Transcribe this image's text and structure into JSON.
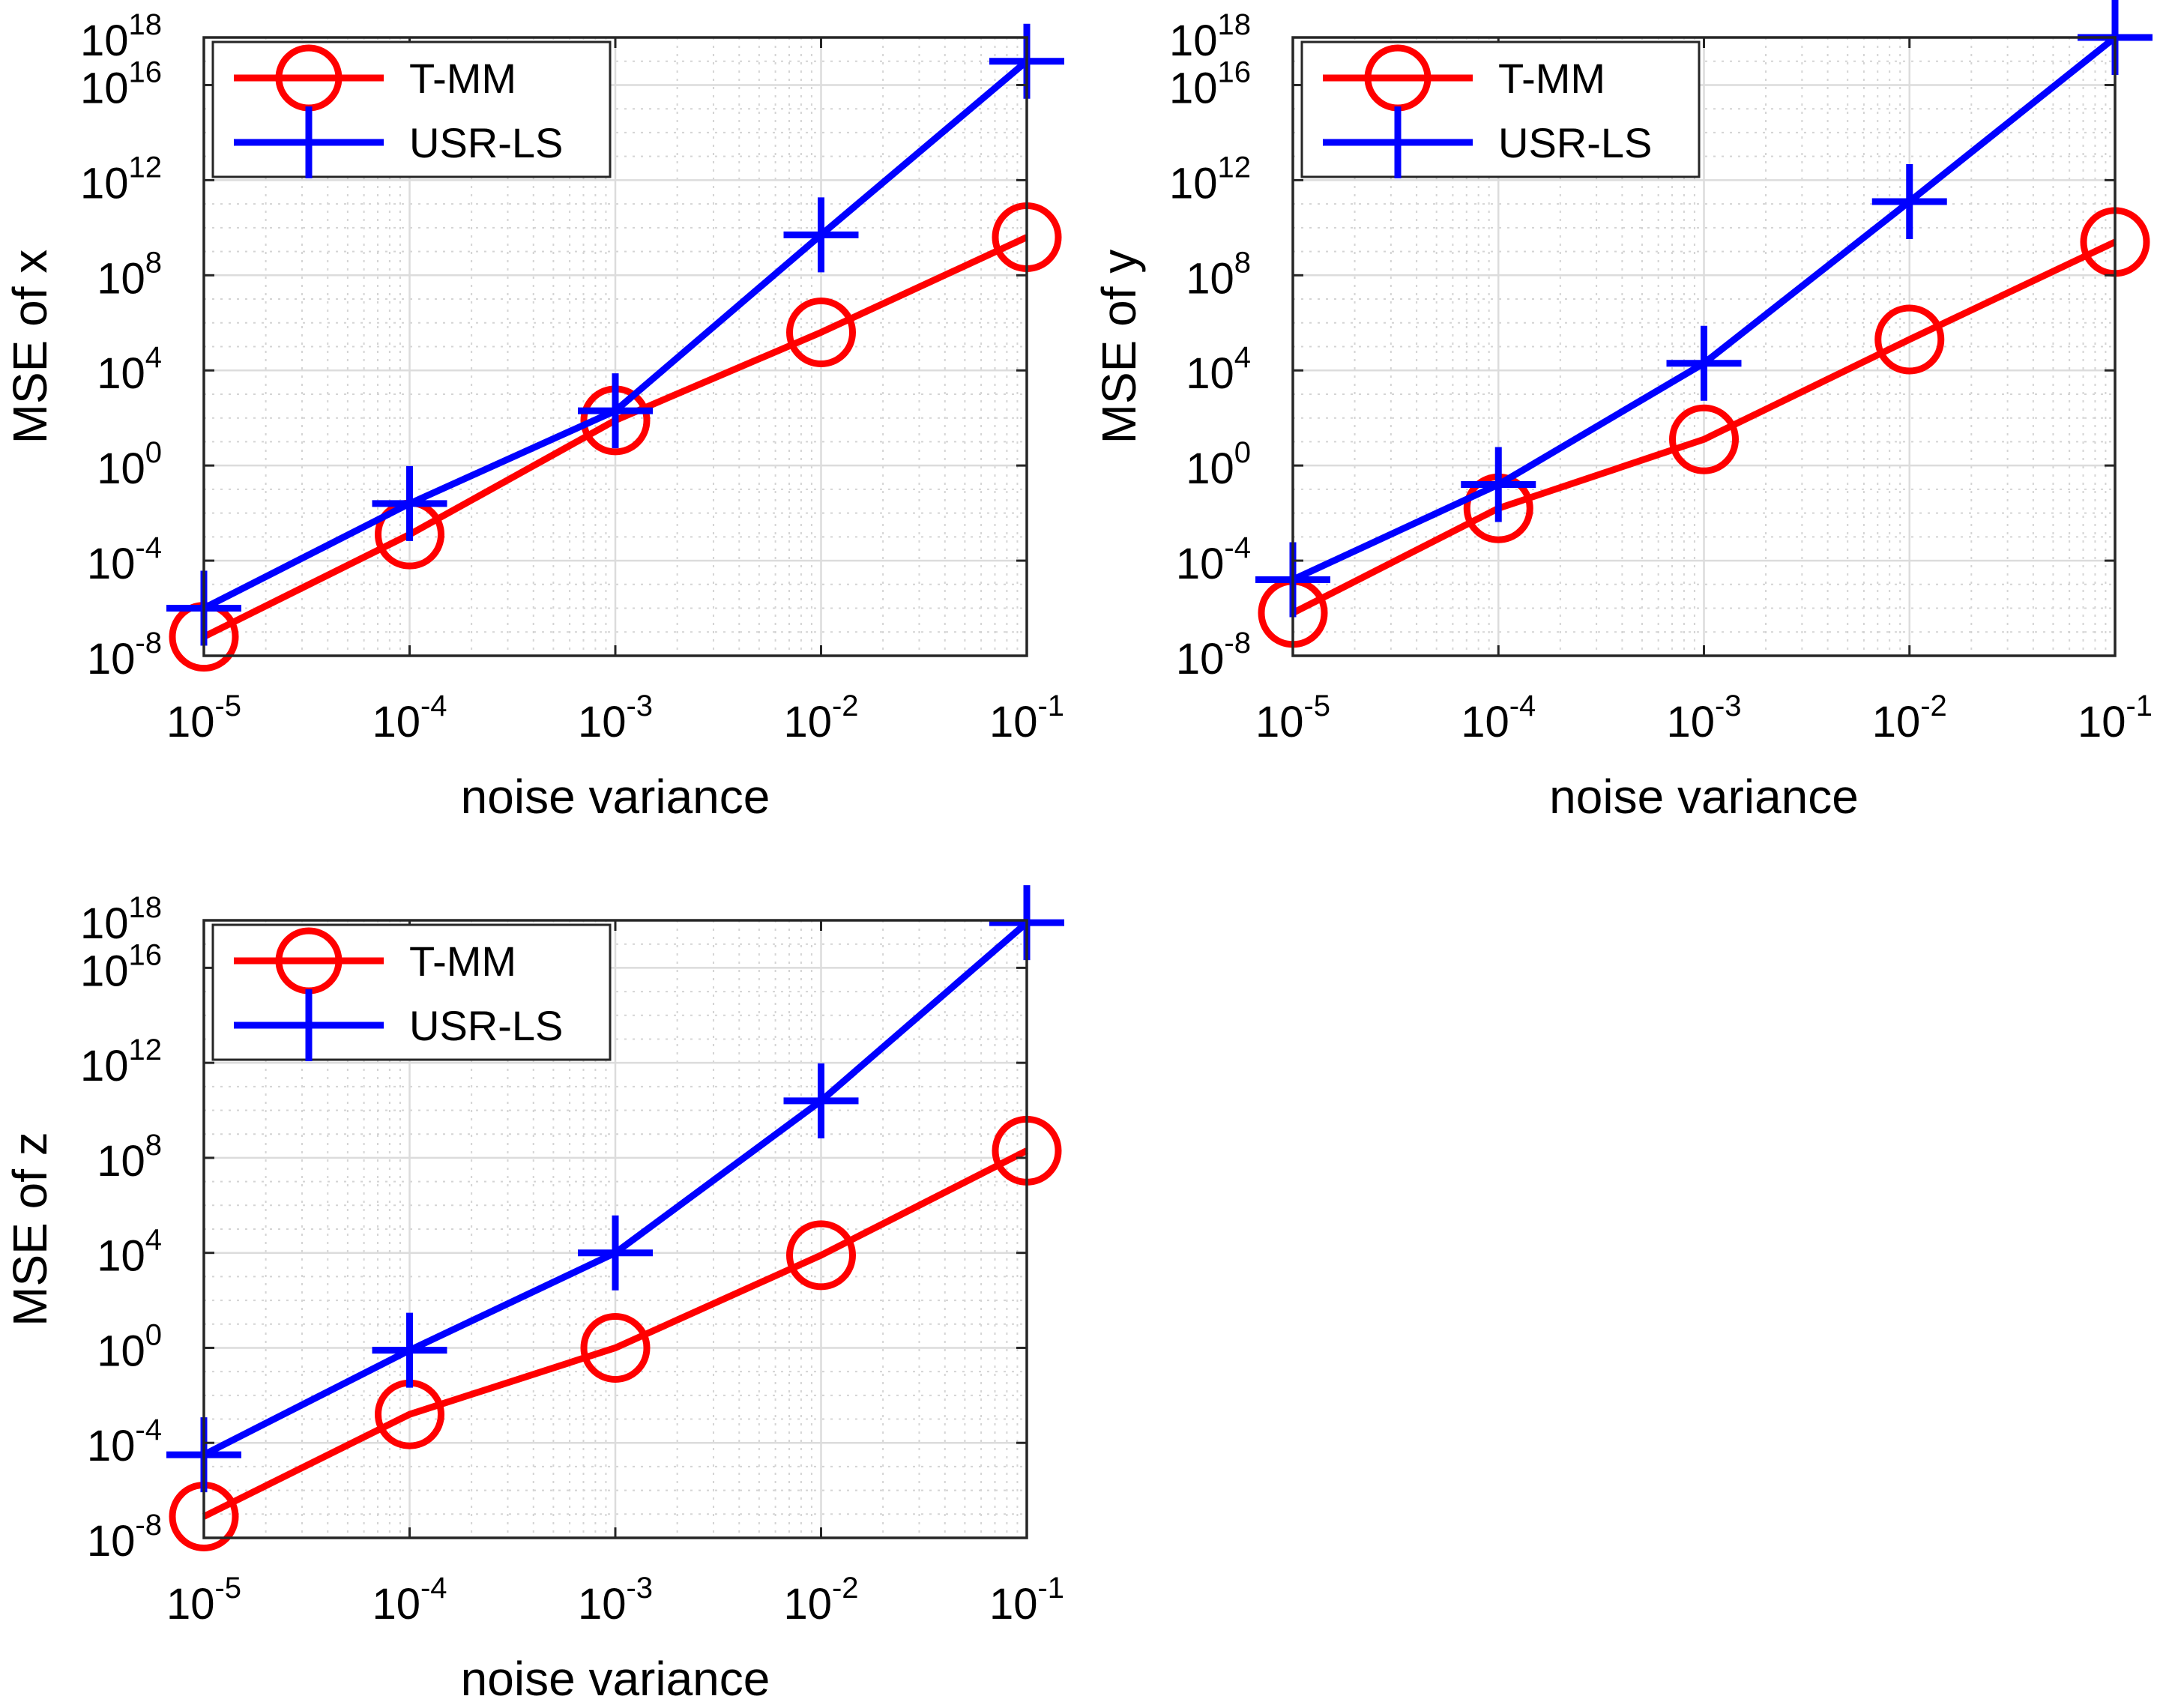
{
  "chart_data": [
    {
      "type": "line",
      "id": "mse-x",
      "title": "",
      "xlabel": "noise variance",
      "ylabel": "MSE of x",
      "xscale": "log",
      "yscale": "log",
      "xlim_exp": [
        -5,
        -1
      ],
      "ylim_exp": [
        -8,
        18
      ],
      "grid": true,
      "legend_position": "top-left",
      "x_tick_labels": [
        {
          "base": "10",
          "exp": "-5"
        },
        {
          "base": "10",
          "exp": "-4"
        },
        {
          "base": "10",
          "exp": "-3"
        },
        {
          "base": "10",
          "exp": "-2"
        },
        {
          "base": "10",
          "exp": "-1"
        }
      ],
      "y_tick_labels": [
        {
          "base": "10",
          "exp": "-8"
        },
        {
          "base": "10",
          "exp": "-4"
        },
        {
          "base": "10",
          "exp": "0"
        },
        {
          "base": "10",
          "exp": "4"
        },
        {
          "base": "10",
          "exp": "8"
        },
        {
          "base": "10",
          "exp": "12"
        },
        {
          "base": "10",
          "exp": "16"
        },
        {
          "base": "10",
          "exp": "18"
        }
      ],
      "x": [
        1e-05,
        0.0001,
        0.001,
        0.01,
        0.1
      ],
      "series": [
        {
          "name": "T-MM",
          "color": "#ff0000",
          "marker": "circle",
          "log10_values": [
            -7.2,
            -2.9,
            1.9,
            5.6,
            9.6
          ]
        },
        {
          "name": "USR-LS",
          "color": "#0000ff",
          "marker": "plus",
          "log10_values": [
            -6.0,
            -1.6,
            2.3,
            9.7,
            17.0
          ]
        }
      ]
    },
    {
      "type": "line",
      "id": "mse-y",
      "title": "",
      "xlabel": "noise variance",
      "ylabel": "MSE of y",
      "xscale": "log",
      "yscale": "log",
      "xlim_exp": [
        -5,
        -1
      ],
      "ylim_exp": [
        -8,
        18
      ],
      "grid": true,
      "legend_position": "top-left",
      "x_tick_labels": [
        {
          "base": "10",
          "exp": "-5"
        },
        {
          "base": "10",
          "exp": "-4"
        },
        {
          "base": "10",
          "exp": "-3"
        },
        {
          "base": "10",
          "exp": "-2"
        },
        {
          "base": "10",
          "exp": "-1"
        }
      ],
      "y_tick_labels": [
        {
          "base": "10",
          "exp": "-8"
        },
        {
          "base": "10",
          "exp": "-4"
        },
        {
          "base": "10",
          "exp": "0"
        },
        {
          "base": "10",
          "exp": "4"
        },
        {
          "base": "10",
          "exp": "8"
        },
        {
          "base": "10",
          "exp": "12"
        },
        {
          "base": "10",
          "exp": "16"
        },
        {
          "base": "10",
          "exp": "18"
        }
      ],
      "x": [
        1e-05,
        0.0001,
        0.001,
        0.01,
        0.1
      ],
      "series": [
        {
          "name": "T-MM",
          "color": "#ff0000",
          "marker": "circle",
          "log10_values": [
            -6.2,
            -1.8,
            1.1,
            5.3,
            9.4
          ]
        },
        {
          "name": "USR-LS",
          "color": "#0000ff",
          "marker": "plus",
          "log10_values": [
            -4.8,
            -0.8,
            4.3,
            11.1,
            18.0
          ]
        }
      ]
    },
    {
      "type": "line",
      "id": "mse-z",
      "title": "",
      "xlabel": "noise variance",
      "ylabel": "MSE of z",
      "xscale": "log",
      "yscale": "log",
      "xlim_exp": [
        -5,
        -1
      ],
      "ylim_exp": [
        -8,
        18
      ],
      "grid": true,
      "legend_position": "top-left",
      "x_tick_labels": [
        {
          "base": "10",
          "exp": "-5"
        },
        {
          "base": "10",
          "exp": "-4"
        },
        {
          "base": "10",
          "exp": "-3"
        },
        {
          "base": "10",
          "exp": "-2"
        },
        {
          "base": "10",
          "exp": "-1"
        }
      ],
      "y_tick_labels": [
        {
          "base": "10",
          "exp": "-8"
        },
        {
          "base": "10",
          "exp": "-4"
        },
        {
          "base": "10",
          "exp": "0"
        },
        {
          "base": "10",
          "exp": "4"
        },
        {
          "base": "10",
          "exp": "8"
        },
        {
          "base": "10",
          "exp": "12"
        },
        {
          "base": "10",
          "exp": "16"
        },
        {
          "base": "10",
          "exp": "18"
        }
      ],
      "x": [
        1e-05,
        0.0001,
        0.001,
        0.01,
        0.1
      ],
      "series": [
        {
          "name": "T-MM",
          "color": "#ff0000",
          "marker": "circle",
          "log10_values": [
            -7.1,
            -2.8,
            0.0,
            3.9,
            8.3
          ]
        },
        {
          "name": "USR-LS",
          "color": "#0000ff",
          "marker": "plus",
          "log10_values": [
            -4.5,
            -0.1,
            4.0,
            10.4,
            17.9
          ]
        }
      ]
    }
  ]
}
